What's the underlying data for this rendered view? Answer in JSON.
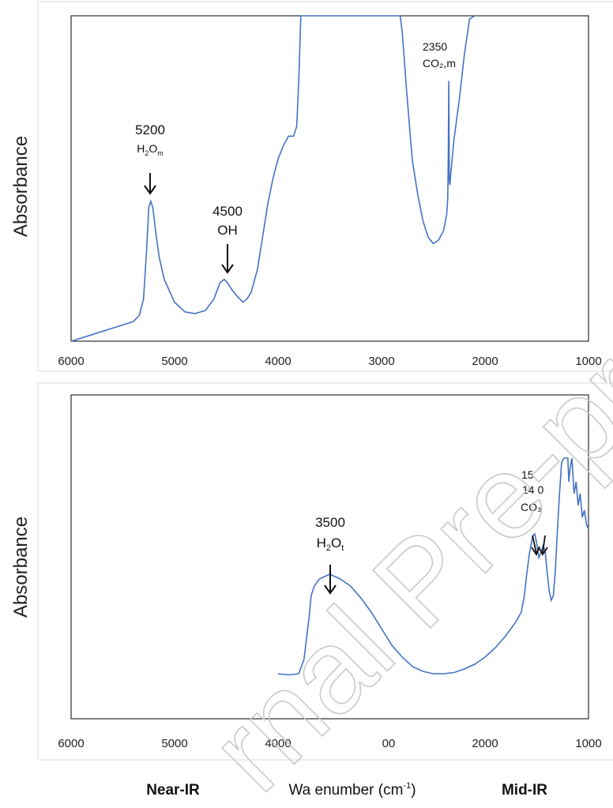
{
  "chart_data": [
    {
      "type": "line",
      "ylabel": "Absorbance",
      "xlim": [
        6000,
        1000
      ],
      "x_ticks": [
        "6000",
        "5000",
        "4000",
        "3000",
        "2000",
        "1000"
      ],
      "grid": false,
      "series": [
        {
          "x": [
            6000,
            5800,
            5600,
            5500,
            5400,
            5340,
            5300,
            5270,
            5250,
            5230,
            5210,
            5180,
            5150,
            5100,
            5000,
            4900,
            4800,
            4700,
            4620,
            4560,
            4520,
            4490,
            4450,
            4400,
            4340,
            4300,
            4260,
            4200,
            4150,
            4100,
            4050,
            4000,
            3950,
            3900,
            3850,
            3820,
            3800,
            3780,
            3760,
            3750,
            2820,
            2800,
            2760,
            2720,
            2700,
            2650,
            2600,
            2550,
            2500,
            2450,
            2400,
            2370,
            2360,
            2355,
            2350,
            2345,
            2340,
            2330,
            2300,
            2250,
            2200,
            2150,
            2100
          ],
          "y": [
            0.0,
            0.02,
            0.04,
            0.05,
            0.06,
            0.08,
            0.13,
            0.28,
            0.41,
            0.43,
            0.41,
            0.33,
            0.26,
            0.19,
            0.12,
            0.09,
            0.085,
            0.095,
            0.13,
            0.18,
            0.19,
            0.18,
            0.16,
            0.14,
            0.12,
            0.13,
            0.15,
            0.22,
            0.32,
            0.42,
            0.5,
            0.56,
            0.6,
            0.63,
            0.63,
            0.66,
            0.8,
            1.0,
            1.05,
            1.1,
            1.1,
            0.95,
            0.78,
            0.62,
            0.55,
            0.45,
            0.37,
            0.32,
            0.3,
            0.31,
            0.34,
            0.39,
            0.44,
            0.57,
            0.8,
            0.49,
            0.48,
            0.52,
            0.62,
            0.74,
            0.88,
            0.99,
            1.1
          ]
        }
      ],
      "annotations": [
        {
          "x": 5200,
          "line1": "5200",
          "base": "H",
          "sub1": "2",
          "mid": "O",
          "sub2": "m"
        },
        {
          "x": 4500,
          "line1": "4500",
          "line2": "OH"
        },
        {
          "x": 2350,
          "line1": "2350",
          "line2": "CO₂,m"
        }
      ]
    },
    {
      "type": "line",
      "ylabel": "Absorbance",
      "xlim": [
        6000,
        1000
      ],
      "x_ticks": [
        "6000",
        "5000",
        "4000",
        "3000",
        "2000",
        "1000"
      ],
      "x_tick_3000_visible": "00",
      "grid": false,
      "series": [
        {
          "x": [
            4000,
            3900,
            3800,
            3750,
            3700,
            3680,
            3650,
            3600,
            3550,
            3500,
            3450,
            3400,
            3300,
            3200,
            3100,
            3000,
            2900,
            2800,
            2700,
            2600,
            2500,
            2400,
            2300,
            2200,
            2100,
            2000,
            1900,
            1800,
            1700,
            1650,
            1620,
            1600,
            1570,
            1540,
            1520,
            1500,
            1480,
            1460,
            1440,
            1420,
            1400,
            1380,
            1360,
            1340,
            1320,
            1300,
            1280,
            1260,
            1240,
            1220,
            1200,
            1190,
            1180,
            1160,
            1140,
            1120,
            1100,
            1080,
            1060,
            1040,
            1020,
            1000
          ],
          "y": [
            0.09,
            0.085,
            0.09,
            0.15,
            0.33,
            0.42,
            0.46,
            0.49,
            0.5,
            0.51,
            0.5,
            0.49,
            0.46,
            0.41,
            0.35,
            0.28,
            0.21,
            0.16,
            0.12,
            0.1,
            0.09,
            0.09,
            0.095,
            0.11,
            0.13,
            0.16,
            0.2,
            0.25,
            0.31,
            0.35,
            0.42,
            0.5,
            0.6,
            0.67,
            0.68,
            0.64,
            0.58,
            0.6,
            0.63,
            0.61,
            0.52,
            0.44,
            0.4,
            0.42,
            0.53,
            0.7,
            0.85,
            0.98,
            1.06,
            1.1,
            1.05,
            0.9,
            0.95,
            1.02,
            0.85,
            0.9,
            0.8,
            0.85,
            0.75,
            0.78,
            0.72,
            0.7
          ]
        }
      ],
      "annotations": [
        {
          "x": 3500,
          "line1": "3500",
          "base": "H",
          "sub1": "2",
          "mid": "O",
          "sub2": "t"
        },
        {
          "x": 1500,
          "line1": "15",
          "line2": "14 0",
          "line3": "CO₃"
        }
      ]
    }
  ],
  "footer": {
    "left": "Near-IR",
    "center": "Wa enumber (cm",
    "center_sup": "-1",
    "center_end": ")",
    "right": "Mid-IR"
  },
  "watermark": "rnal Pre-proof",
  "colors": {
    "line": "#4472c4",
    "axis": "#000000",
    "panel_border": "#d9d9d9"
  }
}
